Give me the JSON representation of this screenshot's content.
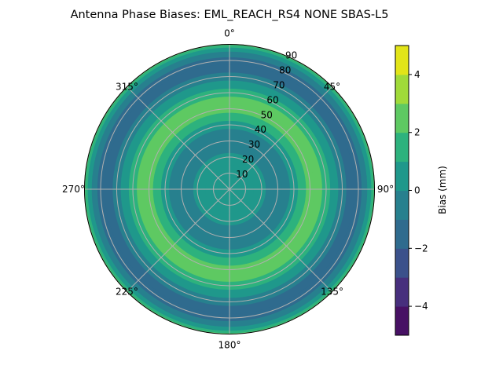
{
  "chart_data": {
    "type": "polar-contour",
    "title": "Antenna Phase Biases: EML_REACH_RS4   NONE SBAS-L5",
    "angular_tick_labels": [
      "0°",
      "45°",
      "90°",
      "135°",
      "180°",
      "225°",
      "270°",
      "315°"
    ],
    "radial_tick_labels": [
      "10",
      "20",
      "30",
      "40",
      "50",
      "60",
      "70",
      "80",
      "90"
    ],
    "radial_range": [
      0,
      90
    ],
    "grid": true,
    "colorbar": {
      "label": "Bias (mm)",
      "levels": [
        -5,
        -4,
        -3,
        -2,
        -1,
        0,
        1,
        2,
        3,
        4,
        5
      ],
      "tick_labels": [
        "−4",
        "−2",
        "0",
        "2",
        "4"
      ],
      "tick_values": [
        -4,
        -2,
        0,
        2,
        4
      ],
      "colormap": "viridis",
      "band_colors": [
        "#471164",
        "#472f7d",
        "#3b518b",
        "#2f6b8e",
        "#27808e",
        "#1f988b",
        "#2db27d",
        "#5ec962",
        "#a0da39",
        "#e2e418"
      ]
    },
    "radial_profile": {
      "r": [
        0,
        10,
        20,
        25,
        30,
        35,
        40,
        45,
        50,
        55,
        60,
        65,
        70,
        75,
        80,
        84,
        87,
        89,
        90
      ],
      "bias": [
        0.5,
        0.5,
        0.4,
        -0.5,
        -0.5,
        -0.5,
        0.5,
        1.5,
        2.5,
        2.5,
        1.5,
        0.5,
        -0.5,
        -1.5,
        -1.5,
        -0.5,
        0.5,
        1.5,
        2.5
      ]
    }
  }
}
